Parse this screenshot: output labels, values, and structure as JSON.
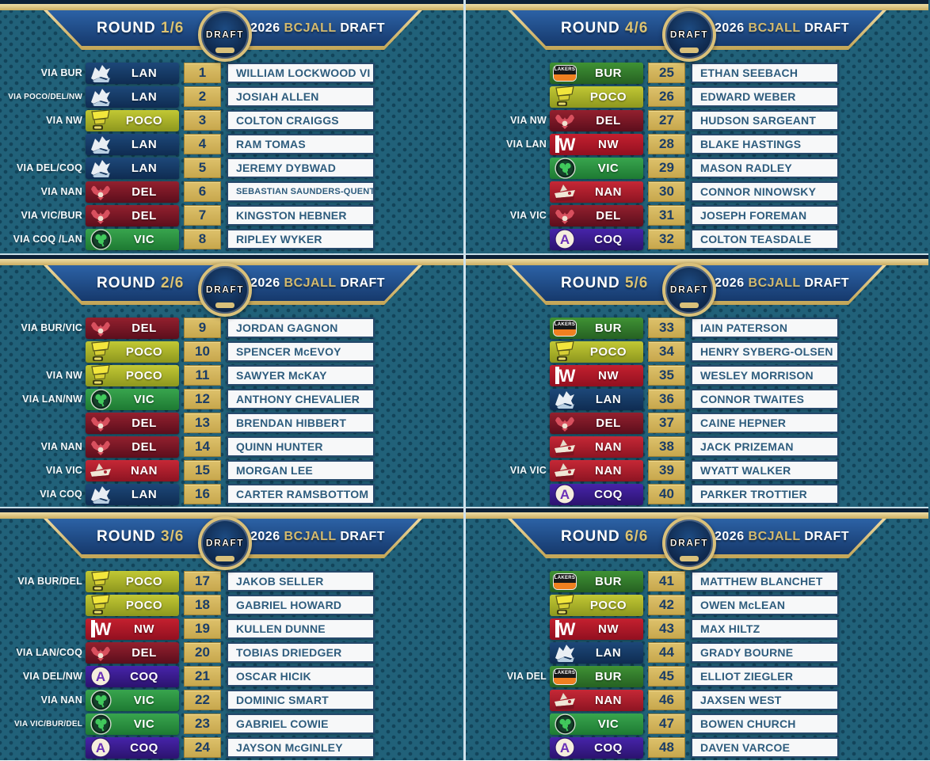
{
  "labels": {
    "round_word": "ROUND"
  },
  "event": {
    "year": "2026",
    "league": "BCJALL",
    "word": "DRAFT",
    "logo_text": "DRAFT"
  },
  "colors": {
    "background": "#216179",
    "banner_blue": "#2c62a6",
    "gold": "#d9c07a",
    "number_box": "#ddc16b",
    "name_text": "#2e5c7d",
    "divider": "#cfe2ec"
  },
  "teams": {
    "LAN": {
      "abbr": "LAN",
      "c1": "#1d4879",
      "c2": "#0f2c52"
    },
    "POCO": {
      "abbr": "POCO",
      "c1": "#c2c834",
      "c2": "#8d971e"
    },
    "DEL": {
      "abbr": "DEL",
      "c1": "#93202e",
      "c2": "#5c0e1c"
    },
    "VIC": {
      "abbr": "VIC",
      "c1": "#38a54e",
      "c2": "#1e7a33"
    },
    "NAN": {
      "abbr": "NAN",
      "c1": "#c62836",
      "c2": "#8d1422"
    },
    "NW": {
      "abbr": "NW",
      "c1": "#c4202f",
      "c2": "#921020",
      "logo_letter": "W"
    },
    "BUR": {
      "abbr": "BUR",
      "c1": "#3f9234",
      "c2": "#266122",
      "logo_text": "LAKERS"
    },
    "COQ": {
      "abbr": "COQ",
      "c1": "#4724aa",
      "c2": "#2c136e",
      "logo_letter": "A"
    }
  },
  "rounds": [
    {
      "number": "1/6",
      "picks": [
        {
          "num": "1",
          "via": "VIA BUR",
          "team": "LAN",
          "player": "WILLIAM LOCKWOOD VI"
        },
        {
          "num": "2",
          "via": "VIA POCO/DEL/NW",
          "team": "LAN",
          "player": "JOSIAH ALLEN"
        },
        {
          "num": "3",
          "via": "VIA NW",
          "team": "POCO",
          "player": "COLTON CRAIGGS"
        },
        {
          "num": "4",
          "via": "",
          "team": "LAN",
          "player": "RAM TOMAS"
        },
        {
          "num": "5",
          "via": "VIA DEL/COQ",
          "team": "LAN",
          "player": "JEREMY DYBWAD"
        },
        {
          "num": "6",
          "via": "VIA NAN",
          "team": "DEL",
          "player": "SEBASTIAN SAUNDERS-QUENTERO"
        },
        {
          "num": "7",
          "via": "VIA VIC/BUR",
          "team": "DEL",
          "player": "KINGSTON HEBNER"
        },
        {
          "num": "8",
          "via": "VIA COQ /LAN",
          "team": "VIC",
          "player": "RIPLEY WYKER"
        }
      ]
    },
    {
      "number": "2/6",
      "picks": [
        {
          "num": "9",
          "via": "VIA BUR/VIC",
          "team": "DEL",
          "player": "JORDAN GAGNON"
        },
        {
          "num": "10",
          "via": "",
          "team": "POCO",
          "player": "SPENCER McEVOY"
        },
        {
          "num": "11",
          "via": "VIA NW",
          "team": "POCO",
          "player": "SAWYER McKAY"
        },
        {
          "num": "12",
          "via": "VIA LAN/NW",
          "team": "VIC",
          "player": "ANTHONY CHEVALIER"
        },
        {
          "num": "13",
          "via": "",
          "team": "DEL",
          "player": "BRENDAN HIBBERT"
        },
        {
          "num": "14",
          "via": "VIA NAN",
          "team": "DEL",
          "player": "QUINN HUNTER"
        },
        {
          "num": "15",
          "via": "VIA VIC",
          "team": "NAN",
          "player": "MORGAN LEE"
        },
        {
          "num": "16",
          "via": "VIA COQ",
          "team": "LAN",
          "player": "CARTER RAMSBOTTOM"
        }
      ]
    },
    {
      "number": "3/6",
      "picks": [
        {
          "num": "17",
          "via": "VIA BUR/DEL",
          "team": "POCO",
          "player": "JAKOB SELLER"
        },
        {
          "num": "18",
          "via": "",
          "team": "POCO",
          "player": "GABRIEL HOWARD"
        },
        {
          "num": "19",
          "via": "",
          "team": "NW",
          "player": "KULLEN DUNNE"
        },
        {
          "num": "20",
          "via": "VIA LAN/COQ",
          "team": "DEL",
          "player": "TOBIAS DRIEDGER"
        },
        {
          "num": "21",
          "via": "VIA DEL/NW",
          "team": "COQ",
          "player": "OSCAR HICIK"
        },
        {
          "num": "22",
          "via": "VIA NAN",
          "team": "VIC",
          "player": "DOMINIC SMART"
        },
        {
          "num": "23",
          "via": "VIA VIC/BUR/DEL",
          "team": "VIC",
          "player": "GABRIEL COWIE"
        },
        {
          "num": "24",
          "via": "",
          "team": "COQ",
          "player": "JAYSON McGINLEY"
        }
      ]
    },
    {
      "number": "4/6",
      "picks": [
        {
          "num": "25",
          "via": "",
          "team": "BUR",
          "player": "ETHAN SEEBACH"
        },
        {
          "num": "26",
          "via": "",
          "team": "POCO",
          "player": "EDWARD WEBER"
        },
        {
          "num": "27",
          "via": "VIA NW",
          "team": "DEL",
          "player": "HUDSON SARGEANT"
        },
        {
          "num": "28",
          "via": "VIA LAN",
          "team": "NW",
          "player": "BLAKE HASTINGS"
        },
        {
          "num": "29",
          "via": "",
          "team": "VIC",
          "player": "MASON RADLEY"
        },
        {
          "num": "30",
          "via": "",
          "team": "NAN",
          "player": "CONNOR NINOWSKY"
        },
        {
          "num": "31",
          "via": "VIA VIC",
          "team": "DEL",
          "player": "JOSEPH FOREMAN"
        },
        {
          "num": "32",
          "via": "",
          "team": "COQ",
          "player": "COLTON TEASDALE"
        }
      ]
    },
    {
      "number": "5/6",
      "picks": [
        {
          "num": "33",
          "via": "",
          "team": "BUR",
          "player": "IAIN PATERSON"
        },
        {
          "num": "34",
          "via": "",
          "team": "POCO",
          "player": "HENRY SYBERG-OLSEN"
        },
        {
          "num": "35",
          "via": "",
          "team": "NW",
          "player": "WESLEY MORRISON"
        },
        {
          "num": "36",
          "via": "",
          "team": "LAN",
          "player": "CONNOR TWAITES"
        },
        {
          "num": "37",
          "via": "",
          "team": "DEL",
          "player": "CAINE HEPNER"
        },
        {
          "num": "38",
          "via": "",
          "team": "NAN",
          "player": "JACK PRIZEMAN"
        },
        {
          "num": "39",
          "via": "VIA VIC",
          "team": "NAN",
          "player": "WYATT WALKER"
        },
        {
          "num": "40",
          "via": "",
          "team": "COQ",
          "player": "PARKER TROTTIER"
        }
      ]
    },
    {
      "number": "6/6",
      "picks": [
        {
          "num": "41",
          "via": "",
          "team": "BUR",
          "player": "MATTHEW BLANCHET"
        },
        {
          "num": "42",
          "via": "",
          "team": "POCO",
          "player": "OWEN McLEAN"
        },
        {
          "num": "43",
          "via": "",
          "team": "NW",
          "player": "MAX HILTZ"
        },
        {
          "num": "44",
          "via": "",
          "team": "LAN",
          "player": "GRADY BOURNE"
        },
        {
          "num": "45",
          "via": "VIA DEL",
          "team": "BUR",
          "player": "ELLIOT ZIEGLER"
        },
        {
          "num": "46",
          "via": "",
          "team": "NAN",
          "player": "JAXSEN WEST"
        },
        {
          "num": "47",
          "via": "",
          "team": "VIC",
          "player": "BOWEN CHURCH"
        },
        {
          "num": "48",
          "via": "",
          "team": "COQ",
          "player": "DAVEN VARCOE"
        }
      ]
    }
  ]
}
